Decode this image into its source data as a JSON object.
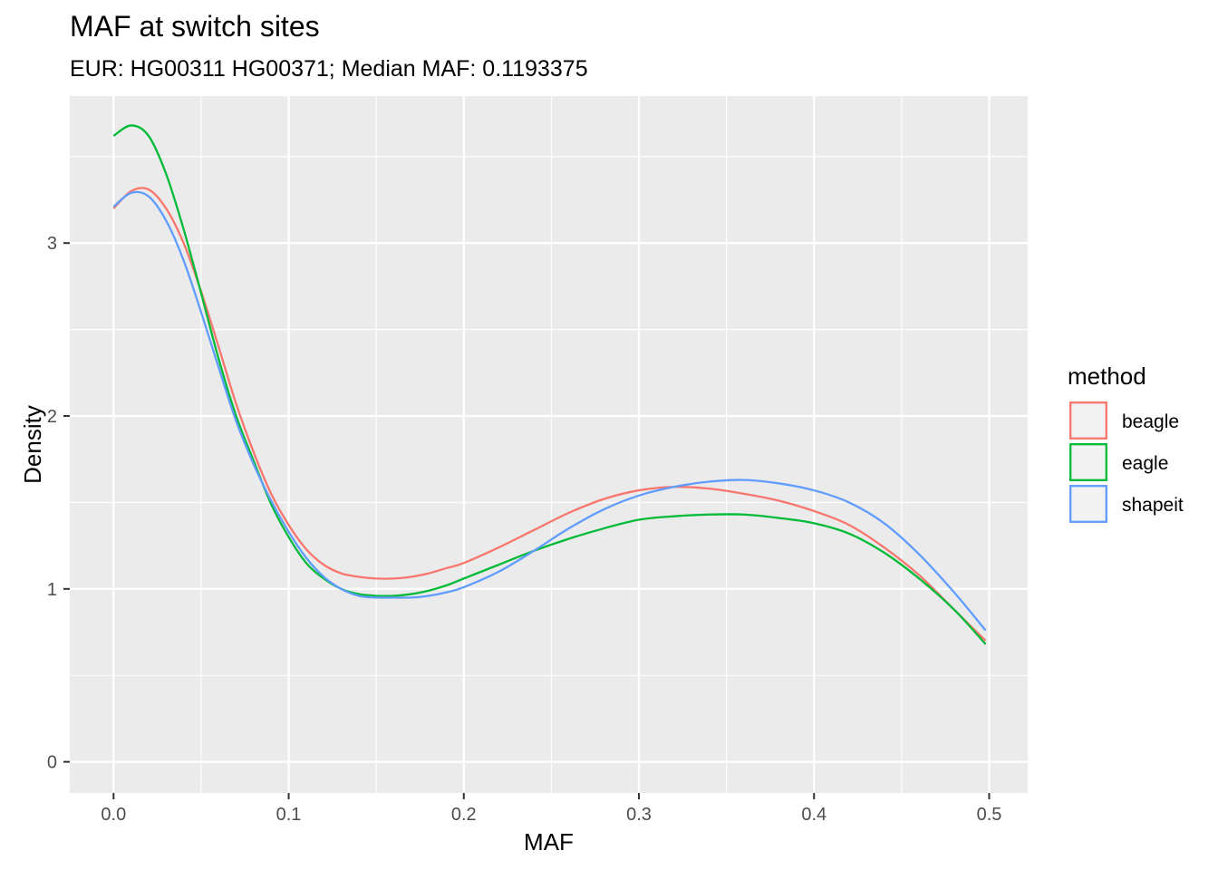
{
  "chart_data": {
    "type": "line",
    "title": "MAF at switch sites",
    "subtitle": "EUR: HG00311 HG00371; Median MAF: 0.1193375",
    "xlabel": "MAF",
    "ylabel": "Density",
    "xlim": [
      -0.025,
      0.522
    ],
    "ylim": [
      -0.18,
      3.85
    ],
    "x_ticks": [
      0.0,
      0.1,
      0.2,
      0.3,
      0.4,
      0.5
    ],
    "x_tick_labels": [
      "0.0",
      "0.1",
      "0.2",
      "0.3",
      "0.4",
      "0.5"
    ],
    "y_ticks": [
      0,
      1,
      2,
      3
    ],
    "y_tick_labels": [
      "0",
      "1",
      "2",
      "3"
    ],
    "grid": true,
    "legend": {
      "title": "method",
      "position": "right"
    },
    "x": [
      0.0,
      0.01,
      0.02,
      0.03,
      0.04,
      0.05,
      0.06,
      0.07,
      0.08,
      0.09,
      0.1,
      0.11,
      0.12,
      0.13,
      0.14,
      0.15,
      0.16,
      0.17,
      0.18,
      0.19,
      0.2,
      0.22,
      0.24,
      0.26,
      0.28,
      0.3,
      0.32,
      0.34,
      0.36,
      0.38,
      0.4,
      0.42,
      0.44,
      0.46,
      0.48,
      0.498
    ],
    "series": [
      {
        "name": "beagle",
        "color": "#F8766D",
        "values": [
          3.2,
          3.3,
          3.31,
          3.2,
          3.0,
          2.72,
          2.4,
          2.07,
          1.79,
          1.55,
          1.37,
          1.23,
          1.14,
          1.09,
          1.07,
          1.06,
          1.06,
          1.07,
          1.09,
          1.12,
          1.15,
          1.24,
          1.34,
          1.44,
          1.52,
          1.57,
          1.59,
          1.58,
          1.55,
          1.51,
          1.45,
          1.37,
          1.24,
          1.08,
          0.88,
          0.7
        ]
      },
      {
        "name": "eagle",
        "color": "#00BA38",
        "values": [
          3.62,
          3.68,
          3.62,
          3.4,
          3.08,
          2.71,
          2.33,
          2.0,
          1.74,
          1.49,
          1.3,
          1.15,
          1.06,
          1.0,
          0.97,
          0.96,
          0.96,
          0.97,
          0.99,
          1.02,
          1.06,
          1.14,
          1.22,
          1.29,
          1.35,
          1.4,
          1.42,
          1.43,
          1.43,
          1.41,
          1.38,
          1.32,
          1.21,
          1.06,
          0.88,
          0.68
        ]
      },
      {
        "name": "shapeit",
        "color": "#619CFF",
        "values": [
          3.21,
          3.29,
          3.27,
          3.13,
          2.9,
          2.6,
          2.28,
          1.97,
          1.72,
          1.51,
          1.33,
          1.18,
          1.07,
          1.0,
          0.96,
          0.95,
          0.95,
          0.95,
          0.96,
          0.98,
          1.01,
          1.1,
          1.22,
          1.35,
          1.46,
          1.54,
          1.59,
          1.62,
          1.63,
          1.61,
          1.57,
          1.5,
          1.38,
          1.2,
          0.98,
          0.76
        ]
      }
    ]
  },
  "colors": {
    "panel_background": "#EBEBEB",
    "grid_major": "#FFFFFF",
    "tick_color": "#333333",
    "legend_key_background": "#F2F2F2"
  }
}
